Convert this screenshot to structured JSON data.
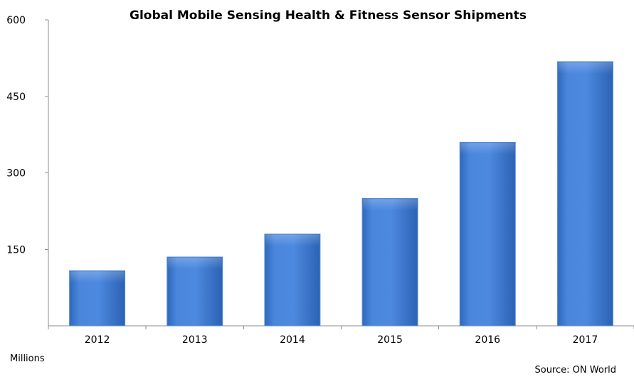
{
  "chart_data": {
    "type": "bar",
    "title": "Global Mobile Sensing Health & Fitness  Sensor Shipments",
    "categories": [
      "2012",
      "2013",
      "2014",
      "2015",
      "2016",
      "2017"
    ],
    "values": [
      108,
      135,
      180,
      250,
      360,
      518
    ],
    "ylabel": "Millions",
    "xlabel": "",
    "ylim": [
      0,
      600
    ],
    "yticks": [
      150,
      300,
      450,
      600
    ],
    "grid": false,
    "source": "Source: ON World"
  }
}
